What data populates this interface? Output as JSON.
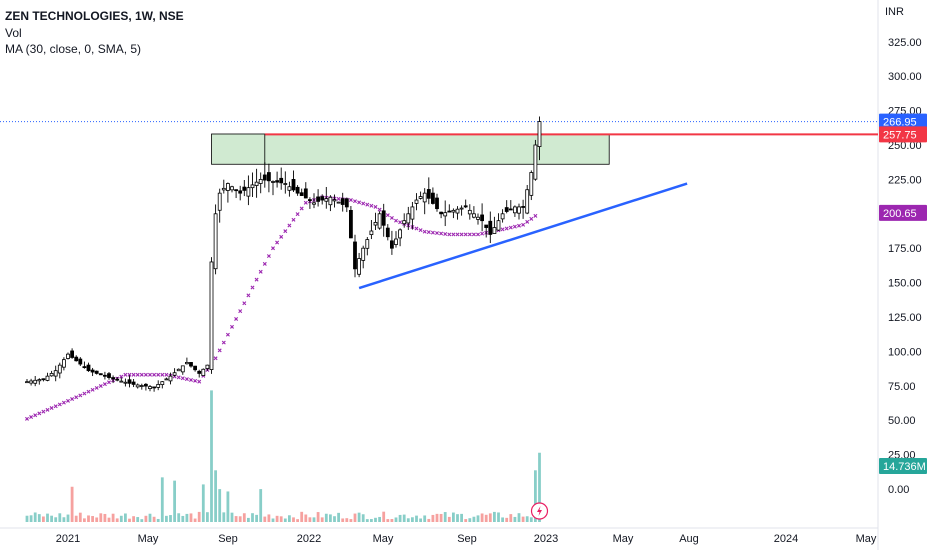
{
  "header": {
    "title": "ZEN TECHNOLOGIES, 1W, NSE",
    "vol_label": "Vol",
    "ma_label": "MA (30, close, 0, SMA, 5)"
  },
  "price_axis": {
    "currency": "INR",
    "ticks": [
      "325.00",
      "300.00",
      "275.00",
      "250.00",
      "225.00",
      "200.00",
      "175.00",
      "150.00",
      "125.00",
      "100.00",
      "75.00",
      "50.00",
      "25.00",
      "0.00"
    ],
    "tick_values": [
      325,
      300,
      275,
      250,
      225,
      200,
      175,
      150,
      125,
      100,
      75,
      50,
      25,
      0
    ]
  },
  "time_axis": {
    "labels": [
      "2021",
      "May",
      "Sep",
      "2022",
      "May",
      "Sep",
      "2023",
      "May",
      "Aug",
      "2024",
      "May"
    ]
  },
  "tags": {
    "last_price": "266.95",
    "resistance": "257.75",
    "ma_value": "200.65",
    "volume": "14.736M"
  },
  "colors": {
    "up": "#26a69a",
    "down": "#ef5350",
    "ma": "#9c27b0",
    "resistance_line": "#f23645",
    "trend_line": "#2962ff",
    "zone_fill": "#c8e6c9",
    "last_price_tag": "#2962ff",
    "ma_tag": "#9c27b0",
    "volume_tag": "#26a69a"
  },
  "chart_data": {
    "type": "candlestick",
    "title": "ZEN TECHNOLOGIES, 1W, NSE",
    "ylim": [
      0,
      340
    ],
    "price_scale_unit": "INR",
    "grid": false,
    "series": [
      {
        "name": "ZEN TECHNOLOGIES",
        "type": "ohlc",
        "anchors": [
          [
            "2020-10-26",
            78
          ],
          [
            "2020-11-23",
            80
          ],
          [
            "2020-12-14",
            86
          ],
          [
            "2021-01-04",
            98
          ],
          [
            "2021-02-08",
            86
          ],
          [
            "2021-03-22",
            80
          ],
          [
            "2021-04-26",
            76
          ],
          [
            "2021-05-31",
            74
          ],
          [
            "2021-06-28",
            82
          ],
          [
            "2021-07-26",
            92
          ],
          [
            "2021-08-16",
            84
          ],
          [
            "2021-08-30",
            90
          ],
          [
            "2021-09-06",
            165
          ],
          [
            "2021-09-13",
            200
          ],
          [
            "2021-09-20",
            215
          ],
          [
            "2021-10-04",
            222
          ],
          [
            "2021-10-25",
            215
          ],
          [
            "2021-11-29",
            225
          ],
          [
            "2022-01-10",
            222
          ],
          [
            "2022-01-31",
            215
          ],
          [
            "2022-02-28",
            208
          ],
          [
            "2022-03-28",
            212
          ],
          [
            "2022-04-25",
            205
          ],
          [
            "2022-05-09",
            160
          ],
          [
            "2022-05-23",
            175
          ],
          [
            "2022-06-20",
            200
          ],
          [
            "2022-07-11",
            175
          ],
          [
            "2022-08-01",
            195
          ],
          [
            "2022-08-22",
            210
          ],
          [
            "2022-09-05",
            215
          ],
          [
            "2022-10-03",
            200
          ],
          [
            "2022-11-14",
            205
          ],
          [
            "2022-12-12",
            195
          ],
          [
            "2022-12-26",
            185
          ],
          [
            "2023-01-16",
            200
          ],
          [
            "2023-02-06",
            205
          ],
          [
            "2023-02-20",
            205
          ],
          [
            "2023-03-06",
            230
          ],
          [
            "2023-03-13",
            250
          ],
          [
            "2023-03-20",
            267
          ]
        ]
      },
      {
        "name": "MA (30, close, 0, SMA, 5)",
        "type": "line",
        "anchors": [
          [
            "2020-10-26",
            51
          ],
          [
            "2021-01-25",
            68
          ],
          [
            "2021-04-12",
            83
          ],
          [
            "2021-06-21",
            83
          ],
          [
            "2021-08-16",
            78
          ],
          [
            "2021-09-13",
            95
          ],
          [
            "2021-12-20",
            175
          ],
          [
            "2022-02-14",
            208
          ],
          [
            "2022-03-14",
            212
          ],
          [
            "2022-05-02",
            210
          ],
          [
            "2022-06-13",
            205
          ],
          [
            "2022-07-18",
            195
          ],
          [
            "2022-09-05",
            187
          ],
          [
            "2022-10-17",
            185
          ],
          [
            "2022-12-05",
            185
          ],
          [
            "2023-01-09",
            188
          ],
          [
            "2023-02-20",
            192
          ],
          [
            "2023-03-20",
            200.65
          ]
        ]
      },
      {
        "name": "Vol",
        "type": "volume",
        "unit": "M",
        "last_value": 14.736,
        "peaks": [
          [
            "2021-01-11",
            7.5
          ],
          [
            "2021-06-14",
            9.5
          ],
          [
            "2021-07-05",
            8.8
          ],
          [
            "2021-08-23",
            8
          ],
          [
            "2021-09-06",
            28
          ],
          [
            "2021-09-13",
            11
          ],
          [
            "2021-09-20",
            7
          ],
          [
            "2021-10-04",
            6.5
          ],
          [
            "2021-11-29",
            7
          ],
          [
            "2023-03-13",
            11
          ],
          [
            "2023-03-20",
            14.736
          ]
        ]
      }
    ],
    "annotations": {
      "resistance_zone": {
        "x_start": "2021-09-06",
        "x_end": "2023-07-17",
        "y_low": 236,
        "y_high": 258
      },
      "resistance_line": {
        "x_start": "2021-12-06",
        "y": 257.75
      },
      "last_price_line": {
        "y": 266.95
      },
      "trend_line": {
        "from": [
          "2022-05-16",
          146
        ],
        "to": [
          "2023-11-27",
          222
        ]
      }
    }
  }
}
